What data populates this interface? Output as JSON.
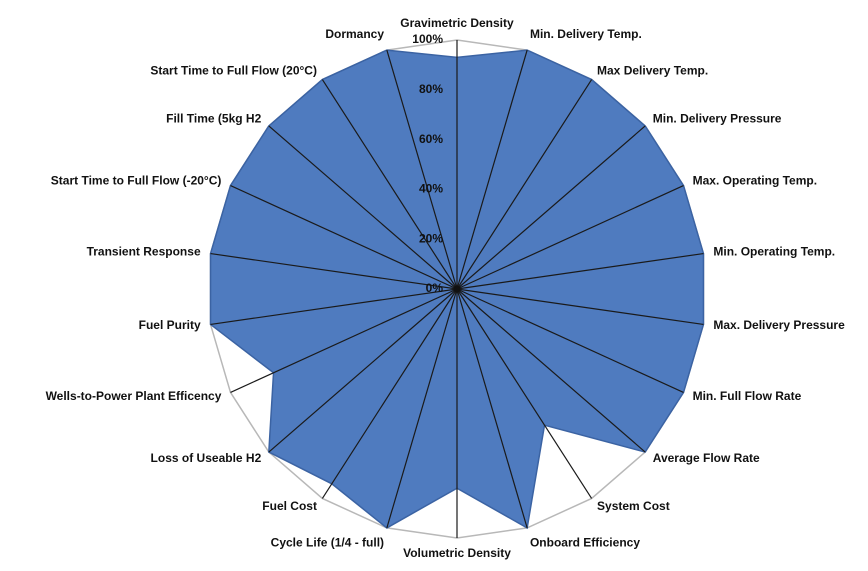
{
  "chart_data": {
    "type": "radar",
    "categories": [
      "Gravimetric Density",
      "Min. Delivery Temp.",
      "Max Delivery Temp.",
      "Min. Delivery Pressure",
      "Max. Operating Temp.",
      "Min. Operating Temp.",
      "Max. Delivery Pressure",
      "Min. Full Flow Rate",
      "Average Flow Rate",
      "System Cost",
      "Onboard Efficiency",
      "Volumetric Density",
      "Cycle Life (1/4 - full)",
      "Fuel Cost",
      "Loss of Useable H2",
      "Wells-to-Power Plant Efficency",
      "Fuel Purity",
      "Transient Response",
      "Start Time to Full Flow (-20°C)",
      "Fill Time (5kg H2",
      "Start Time to Full Flow (20°C)",
      "Dormancy"
    ],
    "values": [
      93,
      100,
      100,
      100,
      100,
      100,
      100,
      100,
      100,
      65,
      100,
      80,
      100,
      93,
      100,
      81,
      100,
      100,
      100,
      100,
      100,
      100
    ],
    "color": "#4f7bbf",
    "ylim": [
      0,
      100
    ],
    "yticks": [
      {
        "value": 0,
        "label": "0%"
      },
      {
        "value": 20,
        "label": "20%"
      },
      {
        "value": 40,
        "label": "40%"
      },
      {
        "value": 60,
        "label": "60%"
      },
      {
        "value": 80,
        "label": "80%"
      },
      {
        "value": 100,
        "label": "100%"
      }
    ]
  }
}
